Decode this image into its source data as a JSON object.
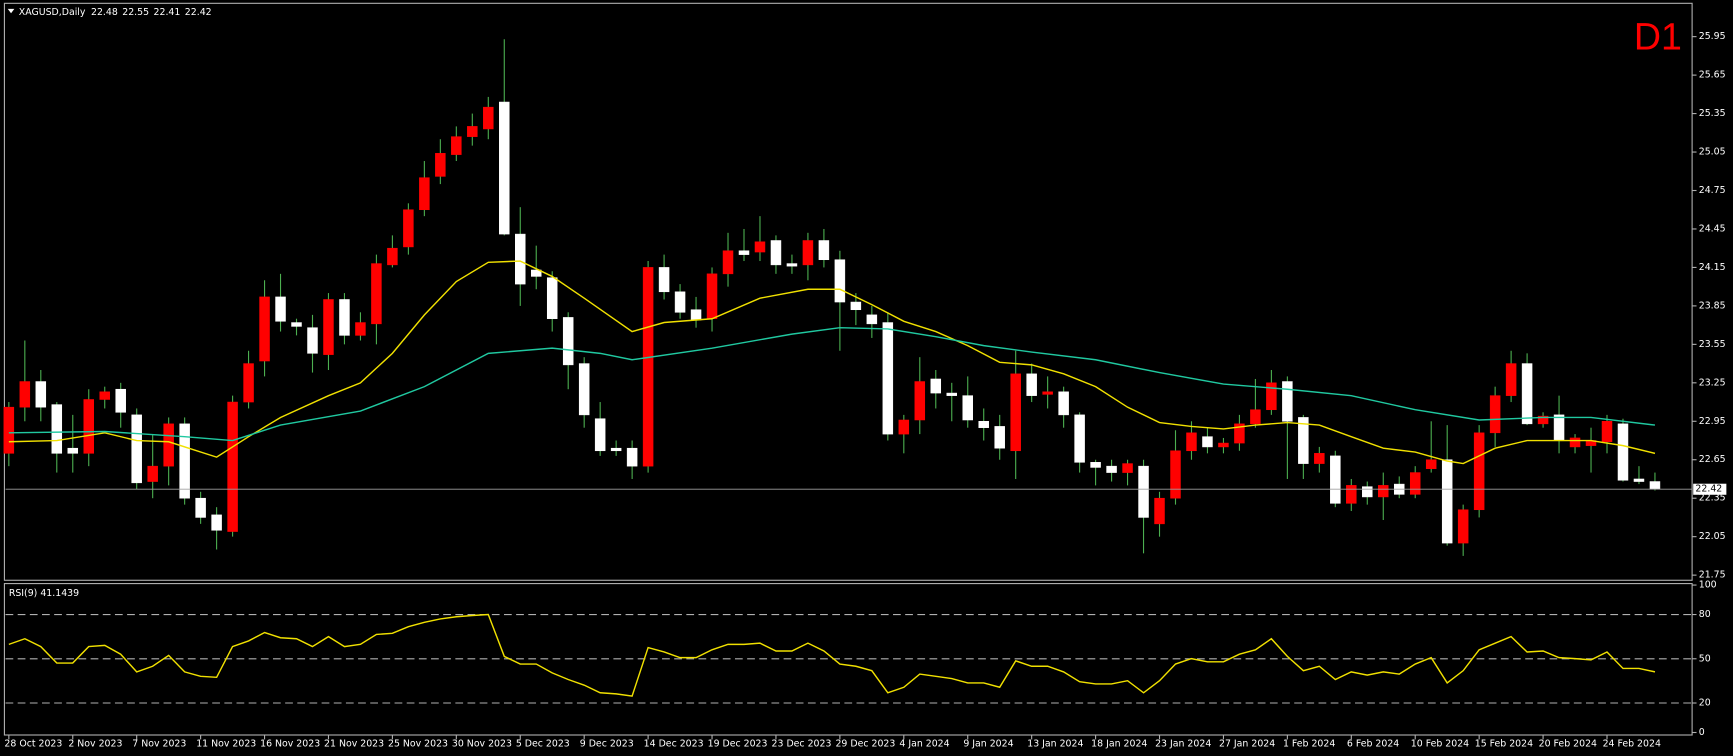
{
  "chart_data": [
    {
      "type": "candlestick",
      "title": "XAGUSD,Daily",
      "timeframe": "D1",
      "categories": [
        "28 Oct 2023",
        null,
        null,
        null,
        "2 Nov 2023",
        null,
        null,
        null,
        "7 Nov 2023",
        null,
        null,
        null,
        "11 Nov 2023",
        null,
        null,
        null,
        "16 Nov 2023",
        null,
        null,
        null,
        "21 Nov 2023",
        null,
        null,
        null,
        "25 Nov 2023",
        null,
        null,
        null,
        "30 Nov 2023",
        null,
        null,
        null,
        "5 Dec 2023",
        null,
        null,
        null,
        "9 Dec 2023",
        null,
        null,
        null,
        "14 Dec 2023",
        null,
        null,
        null,
        "19 Dec 2023",
        null,
        null,
        null,
        "23 Dec 2023",
        null,
        null,
        null,
        "29 Dec 2023",
        null,
        null,
        null,
        "4 Jan 2024",
        null,
        null,
        null,
        "9 Jan 2024",
        null,
        null,
        null,
        "13 Jan 2024",
        null,
        null,
        null,
        "18 Jan 2024",
        null,
        null,
        null,
        "23 Jan 2024",
        null,
        null,
        null,
        "27 Jan 2024",
        null,
        null,
        null,
        "1 Feb 2024",
        null,
        null,
        null,
        "6 Feb 2024",
        null,
        null,
        null,
        "10 Feb 2024",
        null,
        null,
        null,
        "15 Feb 2024",
        null,
        null,
        null,
        "20 Feb 2024",
        null,
        null,
        null,
        "24 Feb 2024",
        null,
        null,
        null
      ],
      "candles": [
        {
          "o": 22.7,
          "h": 23.1,
          "l": 22.6,
          "c": 23.06
        },
        {
          "o": 23.06,
          "h": 23.58,
          "l": 22.95,
          "c": 23.26
        },
        {
          "o": 23.26,
          "h": 23.35,
          "l": 22.95,
          "c": 23.06
        },
        {
          "o": 23.08,
          "h": 23.1,
          "l": 22.55,
          "c": 22.7
        },
        {
          "o": 22.74,
          "h": 23.0,
          "l": 22.55,
          "c": 22.7
        },
        {
          "o": 22.7,
          "h": 23.2,
          "l": 22.6,
          "c": 23.12
        },
        {
          "o": 23.12,
          "h": 23.22,
          "l": 23.05,
          "c": 23.18
        },
        {
          "o": 23.2,
          "h": 23.25,
          "l": 22.9,
          "c": 23.02
        },
        {
          "o": 23.0,
          "h": 23.05,
          "l": 22.42,
          "c": 22.47
        },
        {
          "o": 22.48,
          "h": 22.85,
          "l": 22.35,
          "c": 22.6
        },
        {
          "o": 22.6,
          "h": 22.98,
          "l": 22.45,
          "c": 22.93
        },
        {
          "o": 22.93,
          "h": 22.98,
          "l": 22.3,
          "c": 22.35
        },
        {
          "o": 22.35,
          "h": 22.4,
          "l": 22.15,
          "c": 22.2
        },
        {
          "o": 22.22,
          "h": 22.28,
          "l": 21.95,
          "c": 22.1
        },
        {
          "o": 22.09,
          "h": 23.15,
          "l": 22.05,
          "c": 23.1
        },
        {
          "o": 23.1,
          "h": 23.5,
          "l": 23.05,
          "c": 23.4
        },
        {
          "o": 23.42,
          "h": 24.05,
          "l": 23.3,
          "c": 23.92
        },
        {
          "o": 23.92,
          "h": 24.1,
          "l": 23.65,
          "c": 23.73
        },
        {
          "o": 23.72,
          "h": 23.75,
          "l": 23.62,
          "c": 23.69
        },
        {
          "o": 23.68,
          "h": 23.78,
          "l": 23.33,
          "c": 23.48
        },
        {
          "o": 23.47,
          "h": 23.95,
          "l": 23.35,
          "c": 23.9
        },
        {
          "o": 23.9,
          "h": 23.95,
          "l": 23.55,
          "c": 23.62
        },
        {
          "o": 23.62,
          "h": 23.8,
          "l": 23.58,
          "c": 23.72
        },
        {
          "o": 23.71,
          "h": 24.25,
          "l": 23.55,
          "c": 24.18
        },
        {
          "o": 24.17,
          "h": 24.4,
          "l": 24.15,
          "c": 24.3
        },
        {
          "o": 24.31,
          "h": 24.65,
          "l": 24.25,
          "c": 24.6
        },
        {
          "o": 24.6,
          "h": 24.98,
          "l": 24.55,
          "c": 24.85
        },
        {
          "o": 24.86,
          "h": 25.15,
          "l": 24.8,
          "c": 25.04
        },
        {
          "o": 25.03,
          "h": 25.25,
          "l": 24.98,
          "c": 25.17
        },
        {
          "o": 25.17,
          "h": 25.35,
          "l": 25.1,
          "c": 25.25
        },
        {
          "o": 25.23,
          "h": 25.48,
          "l": 25.15,
          "c": 25.4
        },
        {
          "o": 25.44,
          "h": 25.93,
          "l": 24.4,
          "c": 24.41
        },
        {
          "o": 24.41,
          "h": 24.62,
          "l": 23.85,
          "c": 24.02
        },
        {
          "o": 24.13,
          "h": 24.32,
          "l": 23.98,
          "c": 24.08
        },
        {
          "o": 24.07,
          "h": 24.12,
          "l": 23.65,
          "c": 23.75
        },
        {
          "o": 23.76,
          "h": 23.8,
          "l": 23.2,
          "c": 23.39
        },
        {
          "o": 23.4,
          "h": 23.45,
          "l": 22.9,
          "c": 23.0
        },
        {
          "o": 22.97,
          "h": 23.1,
          "l": 22.68,
          "c": 22.72
        },
        {
          "o": 22.74,
          "h": 22.8,
          "l": 22.68,
          "c": 22.72
        },
        {
          "o": 22.74,
          "h": 22.8,
          "l": 22.5,
          "c": 22.6
        },
        {
          "o": 22.6,
          "h": 24.2,
          "l": 22.55,
          "c": 24.15
        },
        {
          "o": 24.15,
          "h": 24.25,
          "l": 23.9,
          "c": 23.96
        },
        {
          "o": 23.96,
          "h": 24.02,
          "l": 23.75,
          "c": 23.8
        },
        {
          "o": 23.82,
          "h": 23.92,
          "l": 23.68,
          "c": 23.74
        },
        {
          "o": 23.75,
          "h": 24.15,
          "l": 23.65,
          "c": 24.1
        },
        {
          "o": 24.1,
          "h": 24.42,
          "l": 24.0,
          "c": 24.28
        },
        {
          "o": 24.28,
          "h": 24.45,
          "l": 24.2,
          "c": 24.25
        },
        {
          "o": 24.27,
          "h": 24.55,
          "l": 24.2,
          "c": 24.35
        },
        {
          "o": 24.36,
          "h": 24.4,
          "l": 24.1,
          "c": 24.17
        },
        {
          "o": 24.18,
          "h": 24.25,
          "l": 24.1,
          "c": 24.16
        },
        {
          "o": 24.17,
          "h": 24.42,
          "l": 24.05,
          "c": 24.36
        },
        {
          "o": 24.36,
          "h": 24.45,
          "l": 24.15,
          "c": 24.21
        },
        {
          "o": 24.21,
          "h": 24.28,
          "l": 23.5,
          "c": 23.88
        },
        {
          "o": 23.88,
          "h": 23.95,
          "l": 23.7,
          "c": 23.82
        },
        {
          "o": 23.78,
          "h": 23.85,
          "l": 23.6,
          "c": 23.71
        },
        {
          "o": 23.72,
          "h": 23.8,
          "l": 22.8,
          "c": 22.85
        },
        {
          "o": 22.85,
          "h": 23.0,
          "l": 22.7,
          "c": 22.96
        },
        {
          "o": 22.96,
          "h": 23.45,
          "l": 22.85,
          "c": 23.26
        },
        {
          "o": 23.28,
          "h": 23.35,
          "l": 23.05,
          "c": 23.17
        },
        {
          "o": 23.17,
          "h": 23.25,
          "l": 22.95,
          "c": 23.15
        },
        {
          "o": 23.15,
          "h": 23.3,
          "l": 22.9,
          "c": 22.96
        },
        {
          "o": 22.95,
          "h": 23.05,
          "l": 22.8,
          "c": 22.9
        },
        {
          "o": 22.91,
          "h": 23.0,
          "l": 22.65,
          "c": 22.74
        },
        {
          "o": 22.72,
          "h": 23.5,
          "l": 22.5,
          "c": 23.32
        },
        {
          "o": 23.32,
          "h": 23.4,
          "l": 23.1,
          "c": 23.15
        },
        {
          "o": 23.16,
          "h": 23.3,
          "l": 23.05,
          "c": 23.18
        },
        {
          "o": 23.18,
          "h": 23.22,
          "l": 22.9,
          "c": 23.0
        },
        {
          "o": 23.0,
          "h": 23.02,
          "l": 22.55,
          "c": 22.63
        },
        {
          "o": 22.63,
          "h": 22.65,
          "l": 22.45,
          "c": 22.59
        },
        {
          "o": 22.6,
          "h": 22.65,
          "l": 22.48,
          "c": 22.55
        },
        {
          "o": 22.55,
          "h": 22.65,
          "l": 22.45,
          "c": 22.62
        },
        {
          "o": 22.6,
          "h": 22.65,
          "l": 21.92,
          "c": 22.2
        },
        {
          "o": 22.15,
          "h": 22.4,
          "l": 22.05,
          "c": 22.35
        },
        {
          "o": 22.35,
          "h": 22.88,
          "l": 22.3,
          "c": 22.72
        },
        {
          "o": 22.72,
          "h": 22.95,
          "l": 22.65,
          "c": 22.86
        },
        {
          "o": 22.83,
          "h": 22.9,
          "l": 22.7,
          "c": 22.75
        },
        {
          "o": 22.75,
          "h": 22.82,
          "l": 22.7,
          "c": 22.78
        },
        {
          "o": 22.78,
          "h": 23.0,
          "l": 22.72,
          "c": 22.93
        },
        {
          "o": 22.93,
          "h": 23.28,
          "l": 22.9,
          "c": 23.04
        },
        {
          "o": 23.04,
          "h": 23.35,
          "l": 23.0,
          "c": 23.25
        },
        {
          "o": 23.26,
          "h": 23.3,
          "l": 22.5,
          "c": 22.95
        },
        {
          "o": 22.98,
          "h": 23.0,
          "l": 22.5,
          "c": 22.62
        },
        {
          "o": 22.62,
          "h": 22.75,
          "l": 22.55,
          "c": 22.7
        },
        {
          "o": 22.68,
          "h": 22.72,
          "l": 22.28,
          "c": 22.31
        },
        {
          "o": 22.31,
          "h": 22.5,
          "l": 22.25,
          "c": 22.45
        },
        {
          "o": 22.44,
          "h": 22.48,
          "l": 22.3,
          "c": 22.36
        },
        {
          "o": 22.36,
          "h": 22.55,
          "l": 22.18,
          "c": 22.45
        },
        {
          "o": 22.46,
          "h": 22.52,
          "l": 22.35,
          "c": 22.38
        },
        {
          "o": 22.38,
          "h": 22.6,
          "l": 22.35,
          "c": 22.55
        },
        {
          "o": 22.58,
          "h": 22.95,
          "l": 22.55,
          "c": 22.65
        },
        {
          "o": 22.65,
          "h": 22.92,
          "l": 21.98,
          "c": 22.0
        },
        {
          "o": 22.0,
          "h": 22.3,
          "l": 21.9,
          "c": 22.26
        },
        {
          "o": 22.26,
          "h": 22.92,
          "l": 22.2,
          "c": 22.86
        },
        {
          "o": 22.86,
          "h": 23.22,
          "l": 22.75,
          "c": 23.15
        },
        {
          "o": 23.15,
          "h": 23.5,
          "l": 23.1,
          "c": 23.4
        },
        {
          "o": 23.4,
          "h": 23.48,
          "l": 22.92,
          "c": 22.93
        },
        {
          "o": 22.93,
          "h": 23.02,
          "l": 22.9,
          "c": 22.99
        },
        {
          "o": 23.0,
          "h": 23.15,
          "l": 22.7,
          "c": 22.8
        },
        {
          "o": 22.75,
          "h": 22.85,
          "l": 22.7,
          "c": 22.82
        },
        {
          "o": 22.76,
          "h": 22.9,
          "l": 22.55,
          "c": 22.8
        },
        {
          "o": 22.79,
          "h": 23.0,
          "l": 22.7,
          "c": 22.95
        },
        {
          "o": 22.93,
          "h": 22.97,
          "l": 22.48,
          "c": 22.49
        },
        {
          "o": 22.5,
          "h": 22.6,
          "l": 22.46,
          "c": 22.48
        },
        {
          "o": 22.48,
          "h": 22.55,
          "l": 22.41,
          "c": 22.42
        }
      ],
      "up_color": "#ff0000",
      "down_color": "#ffffff",
      "wick_color": "#4caf50",
      "series": [
        {
          "color": "#f0e000",
          "x": [
            0,
            3,
            6,
            8,
            10,
            13,
            15,
            17,
            20,
            22,
            24,
            26,
            28,
            30,
            32,
            34,
            36,
            39,
            41,
            44,
            47,
            50,
            52,
            54,
            56,
            58,
            60,
            62,
            64,
            66,
            68,
            70,
            72,
            74,
            76,
            78,
            80,
            82,
            84,
            86,
            88,
            90,
            91,
            93,
            95,
            97,
            99,
            101,
            103
          ],
          "values": [
            22.79,
            22.8,
            22.86,
            22.8,
            22.79,
            22.67,
            22.83,
            22.98,
            23.15,
            23.25,
            23.48,
            23.78,
            24.04,
            24.19,
            24.2,
            24.08,
            23.91,
            23.65,
            23.72,
            23.75,
            23.91,
            23.98,
            23.98,
            23.86,
            23.73,
            23.65,
            23.54,
            23.41,
            23.39,
            23.32,
            23.22,
            23.06,
            22.94,
            22.91,
            22.89,
            22.92,
            22.94,
            22.92,
            22.83,
            22.74,
            22.71,
            22.64,
            22.62,
            22.74,
            22.8,
            22.8,
            22.8,
            22.76,
            22.7
          ]
        },
        {
          "color": "#20c8a0",
          "x": [
            0,
            6,
            11,
            14,
            17,
            22,
            26,
            30,
            34,
            37,
            39,
            44,
            49,
            52,
            55,
            58,
            61,
            64,
            68,
            72,
            76,
            80,
            84,
            88,
            92,
            96,
            99,
            103
          ],
          "values": [
            22.86,
            22.87,
            22.83,
            22.8,
            22.92,
            23.03,
            23.22,
            23.48,
            23.52,
            23.48,
            23.43,
            23.52,
            23.63,
            23.68,
            23.67,
            23.61,
            23.54,
            23.49,
            23.43,
            23.33,
            23.24,
            23.2,
            23.15,
            23.04,
            22.96,
            22.98,
            22.98,
            22.92
          ]
        }
      ],
      "ylim": [
        21.71,
        26.21
      ],
      "yticks": [
        21.75,
        22.05,
        22.35,
        22.65,
        22.95,
        23.25,
        23.55,
        23.85,
        24.15,
        24.45,
        24.75,
        25.05,
        25.35,
        25.65,
        25.95
      ],
      "last_price_line": true
    },
    {
      "type": "line",
      "title": "RSI(9) 41.1439",
      "color": "#f0e000",
      "values": [
        59.8,
        63.6,
        58.3,
        47.1,
        47.1,
        58.3,
        59.1,
        53.1,
        41.1,
        44.9,
        52.3,
        41.1,
        38.1,
        37.4,
        58.3,
        62.1,
        67.8,
        64.3,
        63.6,
        58.3,
        65.0,
        58.3,
        59.8,
        66.5,
        67.3,
        71.8,
        74.8,
        77.0,
        78.5,
        79.3,
        80.0,
        51.6,
        46.4,
        46.4,
        40.4,
        35.9,
        32.1,
        26.9,
        26.2,
        24.7,
        57.6,
        54.6,
        50.8,
        50.8,
        56.1,
        59.8,
        59.8,
        60.6,
        55.3,
        55.3,
        60.6,
        55.3,
        46.4,
        44.9,
        41.9,
        26.9,
        30.7,
        39.6,
        38.1,
        36.6,
        33.6,
        33.6,
        30.7,
        48.6,
        44.9,
        44.9,
        41.1,
        34.4,
        32.9,
        32.9,
        35.1,
        26.9,
        35.1,
        46.4,
        50.1,
        47.9,
        47.9,
        53.1,
        56.1,
        63.6,
        51.6,
        41.9,
        44.9,
        35.9,
        41.1,
        38.9,
        41.1,
        39.6,
        46.4,
        50.8,
        33.6,
        41.9,
        56.1,
        60.6,
        65.0,
        54.6,
        55.3,
        50.8,
        50.1,
        49.3,
        54.6,
        43.4,
        43.4,
        41.14
      ],
      "ylim": [
        -1.7,
        101
      ],
      "yticks": [
        0,
        20,
        50,
        80,
        100
      ],
      "level_lines": true
    }
  ]
}
